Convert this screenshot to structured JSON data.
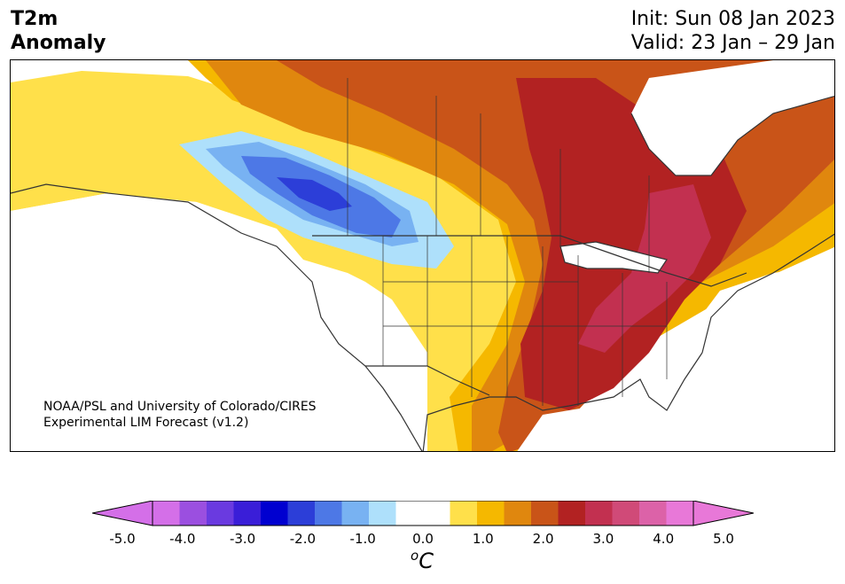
{
  "header": {
    "variable": "T2m",
    "product": "Anomaly",
    "init": "Init: Sun 08 Jan 2023",
    "valid": "Valid: 23 Jan – 29 Jan"
  },
  "map": {
    "credit_line1": "NOAA/PSL and University of Colorado/CIRES",
    "credit_line2": "Experimental LIM Forecast (v1.2)"
  },
  "colorbar": {
    "ticks": [
      "-5.0",
      "-4.0",
      "-3.0",
      "-2.0",
      "-1.0",
      "0.0",
      "1.0",
      "2.0",
      "3.0",
      "4.0",
      "5.0"
    ],
    "unit_super": "o",
    "unit": "C",
    "colors": [
      "#d46fe8",
      "#9b4fe0",
      "#6a3ae0",
      "#3a1ed8",
      "#0000d0",
      "#2c3ed8",
      "#4d78e6",
      "#78b2f2",
      "#aee0fb",
      "#ffffff",
      "#ffffff",
      "#ffe04a",
      "#f5b800",
      "#e0870e",
      "#c95418",
      "#b22222",
      "#c23050",
      "#d04a78",
      "#dc62a8",
      "#e878d8"
    ],
    "extend_low": "#d46fe8",
    "extend_high": "#e878d8"
  }
}
